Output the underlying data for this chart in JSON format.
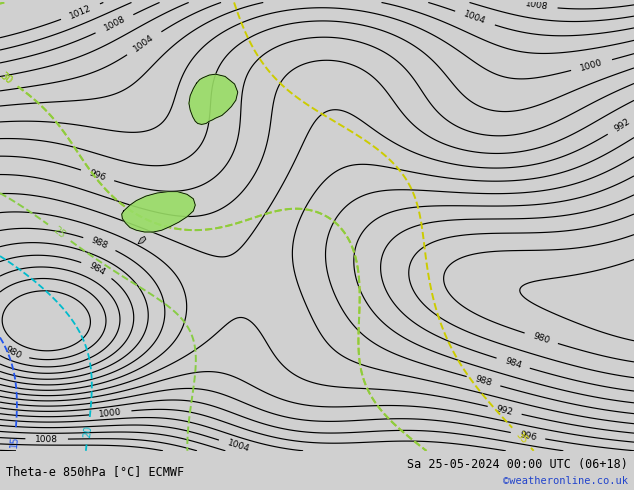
{
  "title_left": "Theta-e 850hPa [°C] ECMWF",
  "title_right": "Sa 25-05-2024 00:00 UTC (06+18)",
  "copyright": "©weatheronline.co.uk",
  "bg_color": "#d0d0d0",
  "fig_width": 6.34,
  "fig_height": 4.9,
  "dpi": 100,
  "pressure_color": "black",
  "theta_green_color": "#88cc44",
  "theta_cyan_color": "#00bbcc",
  "theta_blue_color": "#2255ee",
  "theta_yellow_color": "#cccc00",
  "nz_fill_color": "#99dd66",
  "nz_gray_color": "#aaaaaa"
}
